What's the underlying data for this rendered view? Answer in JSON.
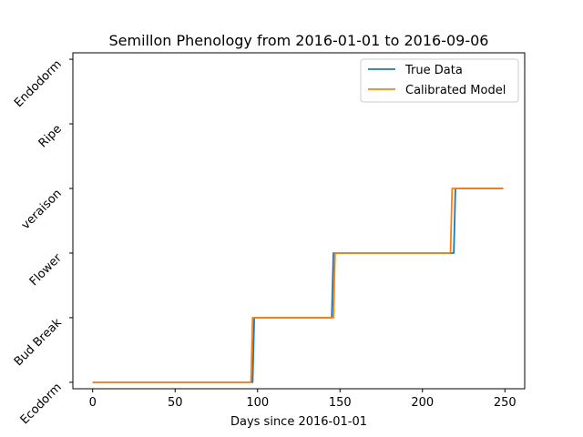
{
  "chart_data": {
    "type": "line",
    "title": "Semillon Phenology from 2016-01-01 to 2016-09-06",
    "xlabel": "Days since 2016-01-01",
    "ylabel": "",
    "xlim": [
      -12,
      262
    ],
    "ylim": [
      -0.1,
      5.1
    ],
    "x_ticks": [
      0,
      50,
      100,
      150,
      200,
      250
    ],
    "y_categories": [
      "Ecodorm",
      "Bud Break",
      "Flower",
      "veraison",
      "Ripe",
      "Endodorm"
    ],
    "grid": false,
    "legend_position": "top-right",
    "series": [
      {
        "name": "True Data",
        "color": "#1f77b4",
        "x": [
          0,
          97,
          98,
          145,
          146,
          219,
          220,
          249
        ],
        "y": [
          0,
          0,
          1,
          1,
          2,
          2,
          3,
          3
        ]
      },
      {
        "name": "Calibrated Model",
        "color": "#ff7f0e",
        "x": [
          0,
          96,
          97,
          146,
          147,
          217,
          218,
          249
        ],
        "y": [
          0,
          0,
          1,
          1,
          2,
          2,
          3,
          3
        ]
      }
    ]
  }
}
